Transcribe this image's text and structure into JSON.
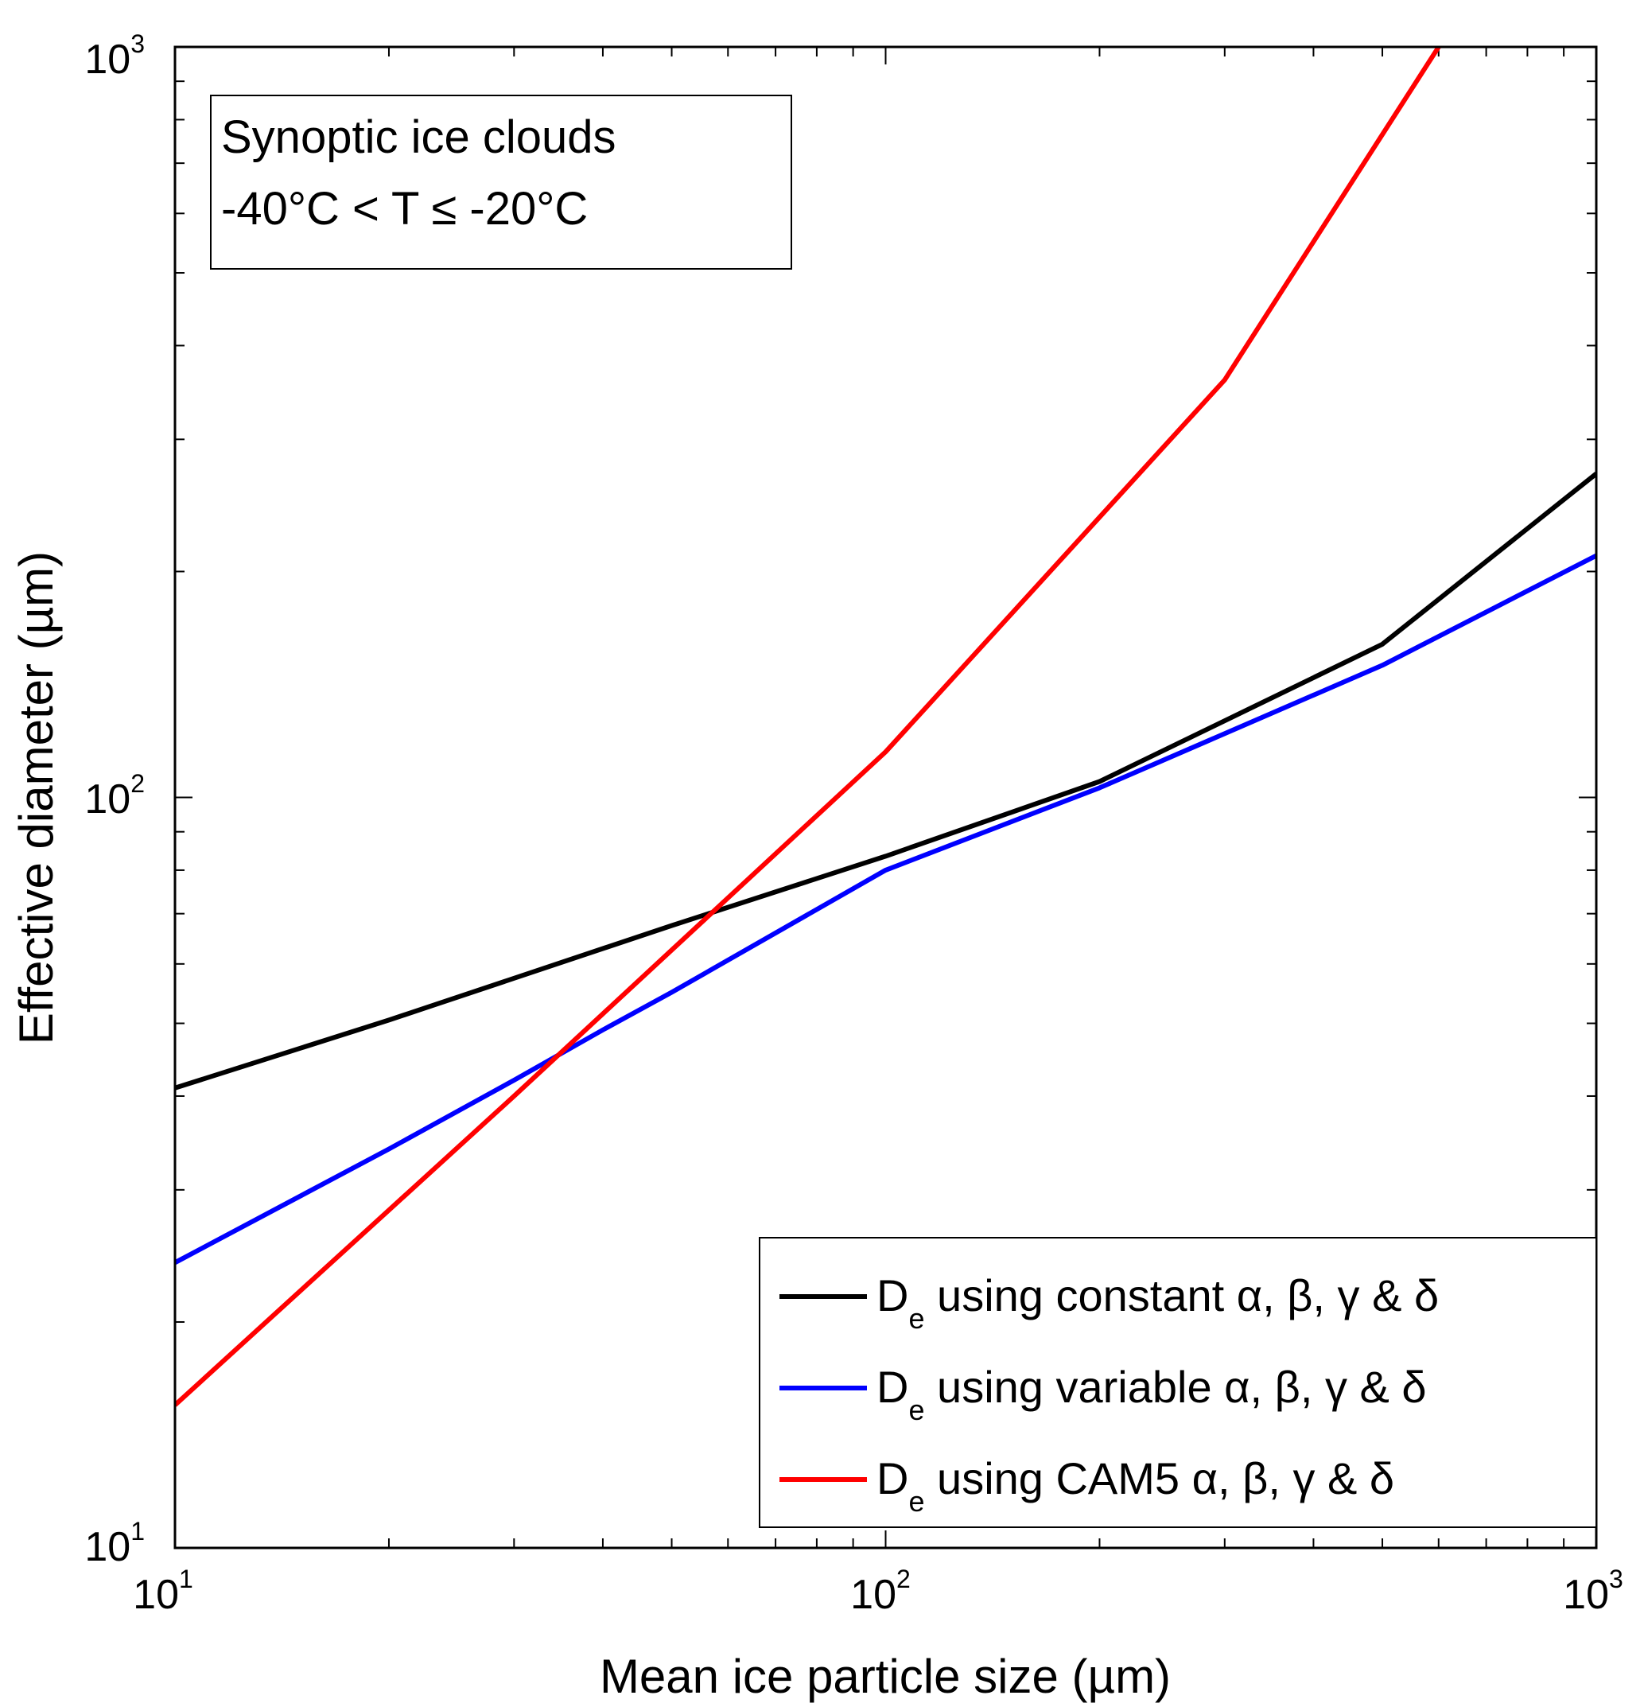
{
  "chart_data": {
    "type": "line",
    "xscale": "log",
    "yscale": "log",
    "xlim": [
      10,
      1000
    ],
    "ylim": [
      10,
      1000
    ],
    "xlabel": "Mean ice particle size (µm)",
    "ylabel": "Effective diameter (µm)",
    "xticks": [
      {
        "base": "10",
        "exp": "1"
      },
      {
        "base": "10",
        "exp": "2"
      },
      {
        "base": "10",
        "exp": "3"
      }
    ],
    "yticks": [
      {
        "base": "10",
        "exp": "1"
      },
      {
        "base": "10",
        "exp": "2"
      },
      {
        "base": "10",
        "exp": "3"
      }
    ],
    "annotation": {
      "line1": "Synoptic ice clouds",
      "line2": "-40°C < T ≤ -20°C"
    },
    "grid": false,
    "legend_position": "bottom-right",
    "series": [
      {
        "name": "D_e using constant α, β, γ & δ",
        "label_main": "D",
        "label_sub": "e",
        "label_rest": " using constant α, β, γ & δ",
        "color": "#000000",
        "x": [
          10,
          20,
          50,
          100,
          200,
          500,
          1000
        ],
        "y": [
          41,
          50.5,
          67.5,
          83.5,
          105,
          160,
          270
        ]
      },
      {
        "name": "D_e using variable α, β, γ & δ",
        "label_main": "D",
        "label_sub": "e",
        "label_rest": " using variable α, β, γ & δ",
        "color": "#0000ff",
        "x": [
          10,
          20,
          30,
          40,
          50,
          100,
          200,
          500,
          1000
        ],
        "y": [
          24,
          34,
          42,
          49,
          55,
          80,
          103,
          150,
          210
        ]
      },
      {
        "name": "D_e using CAM5 α, β, γ & δ",
        "label_main": "D",
        "label_sub": "e",
        "label_rest": " using CAM5 α, β, γ & δ",
        "color": "#ff0000",
        "x": [
          10,
          30,
          100,
          300,
          600
        ],
        "y": [
          15.5,
          40,
          115,
          360,
          1000
        ]
      }
    ]
  }
}
